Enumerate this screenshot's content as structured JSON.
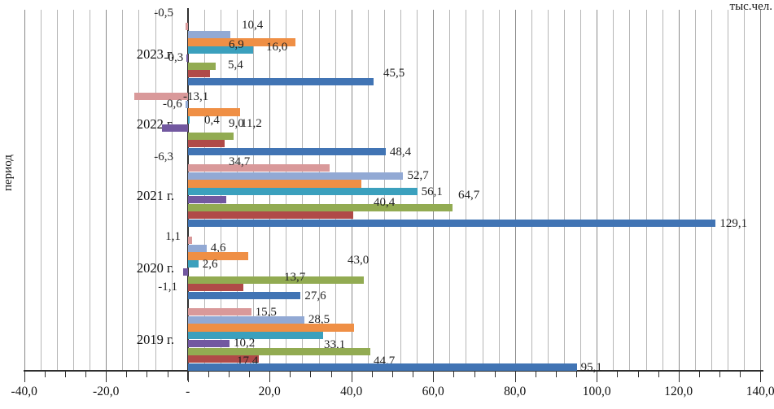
{
  "chart_data": {
    "type": "bar",
    "orientation": "horizontal",
    "value_axis_title": "тыс.чел.",
    "category_axis_title": "период",
    "xlim": [
      -40,
      140
    ],
    "x_major_tick_interval": 20,
    "grid": true,
    "legend": "none",
    "decimal_separator": ",",
    "x_ticks": {
      "values": [
        -40,
        -20,
        0,
        20,
        40,
        60,
        80,
        100,
        120,
        140
      ],
      "labels": [
        "-40,0",
        "-20,0",
        "-",
        "20,0",
        "40,0",
        "60,0",
        "80,0",
        "100,0",
        "120,0",
        "140,0"
      ]
    },
    "categories": [
      "2019 г.",
      "2020 г.",
      "2021 г.",
      "2022 г.",
      "2023 г."
    ],
    "category_order_display": "bottom-to-top",
    "series_order_display": "top-to-bottom within each category group",
    "series": [
      {
        "name": "series-pink",
        "color": "#d9999a",
        "values": [
          15.5,
          1.1,
          34.7,
          -13.1,
          -0.5
        ],
        "labels": [
          "15,5",
          "1,1",
          "34,7",
          "-13,1",
          "-0,5"
        ]
      },
      {
        "name": "series-light-blue",
        "color": "#92a9d4",
        "values": [
          28.5,
          4.6,
          52.7,
          -0.6,
          10.4
        ],
        "labels": [
          "28,5",
          "4,6",
          "52,7",
          "-0,6",
          "10,4"
        ]
      },
      {
        "name": "series-orange",
        "color": "#ef8f45",
        "values": [
          40.7,
          14.8,
          42.5,
          12.8,
          26.3
        ],
        "labels": [
          null,
          null,
          null,
          null,
          null
        ]
      },
      {
        "name": "series-teal",
        "color": "#3ba0bd",
        "values": [
          33.1,
          2.6,
          56.1,
          0.4,
          16.0
        ],
        "labels": [
          "33,1",
          "2,6",
          "56,1",
          "0,4",
          "16,0"
        ]
      },
      {
        "name": "series-purple",
        "color": "#7258a0",
        "values": [
          10.2,
          -1.1,
          9.5,
          -6.3,
          -0.3
        ],
        "labels": [
          "10,2",
          "-1,1",
          "9,5",
          "-6,3",
          "-0,3"
        ]
      },
      {
        "name": "series-green",
        "color": "#92ab52",
        "values": [
          44.7,
          43.0,
          64.7,
          11.2,
          6.9
        ],
        "labels": [
          "44,7",
          "43,0",
          "64,7",
          "11,2",
          "6,9"
        ]
      },
      {
        "name": "series-dark-red",
        "color": "#b04a48",
        "values": [
          17.4,
          13.7,
          40.4,
          9.0,
          5.4
        ],
        "labels": [
          "17,4",
          "13,7",
          "40,4",
          "9,0",
          "5,4"
        ]
      },
      {
        "name": "series-dark-blue",
        "color": "#4174b4",
        "values": [
          95.1,
          27.6,
          129.1,
          48.4,
          45.5
        ],
        "labels": [
          "95,1",
          "27,6",
          "129,1",
          "48,4",
          "45,5"
        ]
      }
    ]
  }
}
